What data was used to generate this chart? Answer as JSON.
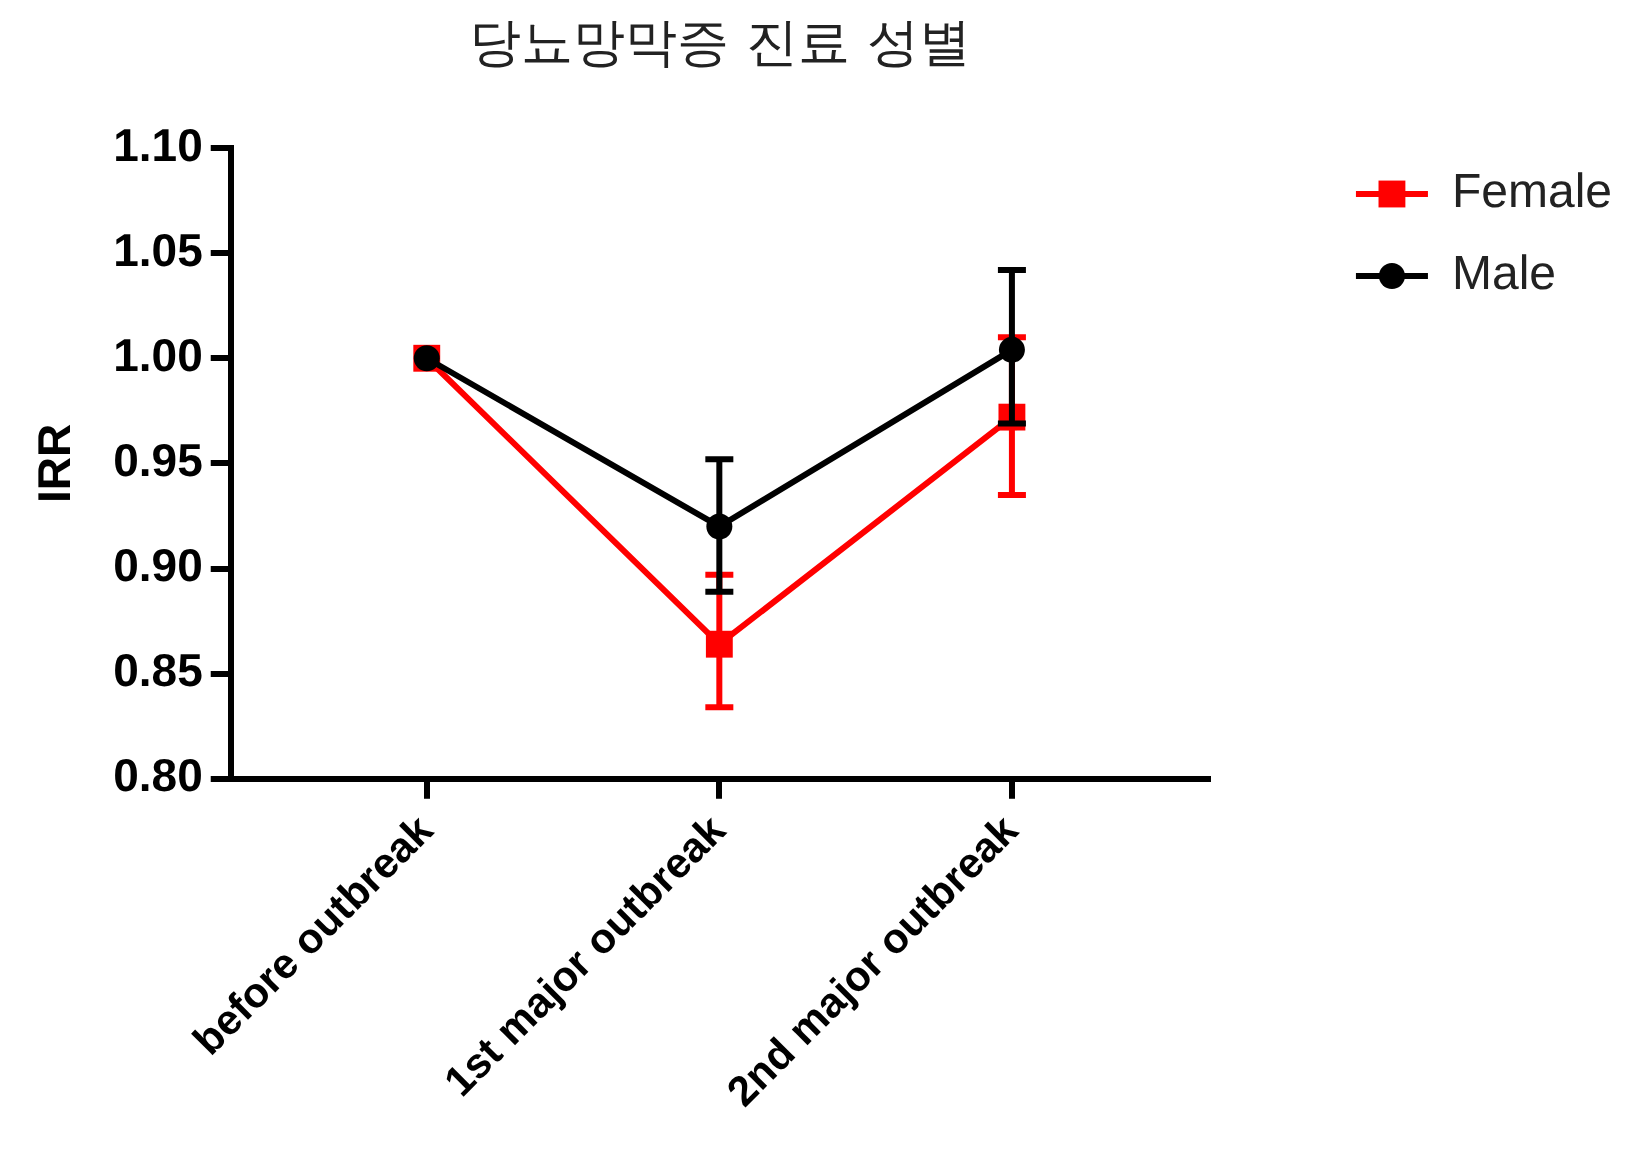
{
  "chart_data": {
    "type": "line",
    "title": "당뇨망막증 진료 성별",
    "ylabel": "IRR",
    "categories": [
      "before outbreak",
      "1st major outbreak",
      "2nd major outbreak"
    ],
    "series": [
      {
        "name": "Female",
        "color": "#ff0000",
        "marker": "square",
        "values": [
          1.0,
          0.864,
          0.972
        ],
        "errors": [
          null,
          [
            0.834,
            0.897
          ],
          [
            0.935,
            1.01
          ]
        ]
      },
      {
        "name": "Male",
        "color": "#000000",
        "marker": "circle",
        "values": [
          1.0,
          0.92,
          1.004
        ],
        "errors": [
          null,
          [
            0.889,
            0.952
          ],
          [
            0.969,
            1.042
          ]
        ]
      }
    ],
    "ylim": [
      0.8,
      1.1
    ],
    "yticks": [
      {
        "value": 0.8,
        "label": "0.80"
      },
      {
        "value": 0.85,
        "label": "0.85"
      },
      {
        "value": 0.9,
        "label": "0.90"
      },
      {
        "value": 0.95,
        "label": "0.95"
      },
      {
        "value": 1.0,
        "label": "1.00"
      },
      {
        "value": 1.05,
        "label": "1.05"
      },
      {
        "value": 1.1,
        "label": "1.10"
      }
    ],
    "legend": "top right",
    "line_style": "solid"
  }
}
